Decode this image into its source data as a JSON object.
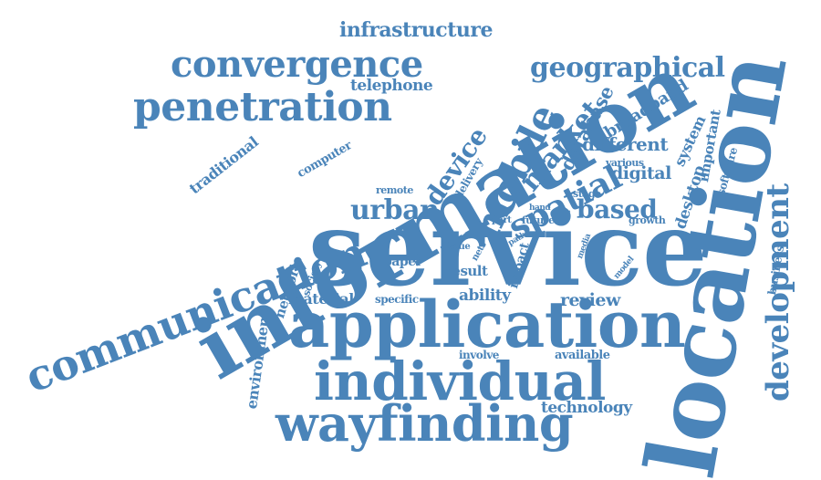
{
  "style": {
    "word_color": "#4a84b9",
    "background": "#ffffff"
  },
  "words": [
    "service",
    "location",
    "information",
    "application",
    "individual",
    "wayfinding",
    "communication",
    "penetration",
    "convergence",
    "mobile",
    "spatial",
    "development",
    "geographical",
    "infrastructure",
    "market",
    "device",
    "urban",
    "based",
    "database",
    "broadband",
    "telephone",
    "different",
    "digital",
    "system",
    "important",
    "traditional",
    "computer",
    "software",
    "desktop",
    "various",
    "delivery",
    "remote",
    "stage",
    "hand",
    "part",
    "future",
    "growth",
    "issue",
    "nets",
    "path",
    "media",
    "society",
    "network",
    "paper",
    "result",
    "impact",
    "model",
    "business",
    "material",
    "specific",
    "ability",
    "review",
    "environment",
    "involve",
    "available",
    "technology"
  ]
}
